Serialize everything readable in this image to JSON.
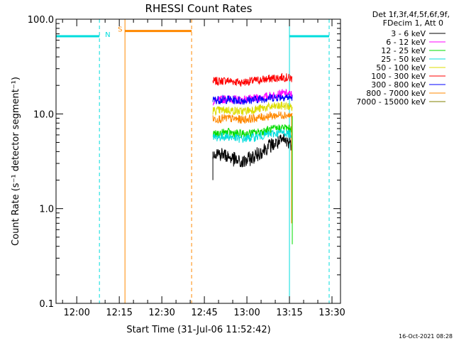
{
  "chart_data": {
    "type": "line",
    "title": "RHESSI Count Rates",
    "xlabel": "Start Time (31-Jul-06 11:52:42)",
    "ylabel": "Count Rate (s⁻¹ detector segment⁻¹)",
    "y_scale": "log",
    "ylim": [
      0.1,
      100.0
    ],
    "xlim": [
      "11:52:42",
      "13:33:00"
    ],
    "x_ticks": [
      "12:00",
      "12:15",
      "12:30",
      "12:45",
      "13:00",
      "13:15",
      "13:30"
    ],
    "y_ticks": [
      "0.1",
      "1.0",
      "10.0",
      "100.0"
    ],
    "grid": false,
    "legend_position": "top-right",
    "legend_header": [
      "Det 1f,3f,4f,5f,6f,9f,",
      "FDecim 1, Att 0"
    ],
    "series": [
      {
        "name": "3 - 6 keV",
        "color": "#000000",
        "x": [
          "12:48",
          "12:53",
          "12:58",
          "13:03",
          "13:08",
          "13:13",
          "13:16"
        ],
        "values": [
          4.0,
          3.6,
          3.0,
          3.6,
          4.6,
          5.2,
          4.9
        ]
      },
      {
        "name": "6 - 12 keV",
        "color": "#ff00ff",
        "x": [
          "12:48",
          "12:53",
          "12:58",
          "13:03",
          "13:08",
          "13:13",
          "13:16"
        ],
        "values": [
          13.5,
          14.5,
          14.0,
          14.5,
          15.5,
          16.5,
          16.0
        ]
      },
      {
        "name": "12 - 25 keV",
        "color": "#00dd00",
        "x": [
          "12:48",
          "12:53",
          "12:58",
          "13:03",
          "13:08",
          "13:13",
          "13:16"
        ],
        "values": [
          6.0,
          6.4,
          6.1,
          6.3,
          6.8,
          7.2,
          6.8
        ]
      },
      {
        "name": "25 - 50 keV",
        "color": "#00dddd",
        "x": [
          "12:48",
          "12:53",
          "12:58",
          "13:03",
          "13:08",
          "13:13",
          "13:16"
        ],
        "values": [
          5.6,
          5.8,
          5.4,
          5.7,
          6.1,
          6.4,
          6.0
        ]
      },
      {
        "name": "50 - 100 keV",
        "color": "#dddd00",
        "x": [
          "12:48",
          "12:53",
          "12:58",
          "13:03",
          "13:08",
          "13:13",
          "13:16"
        ],
        "values": [
          10.8,
          11.0,
          10.6,
          11.2,
          11.8,
          12.2,
          11.8
        ]
      },
      {
        "name": "100 - 300 keV",
        "color": "#ff0000",
        "x": [
          "12:48",
          "12:53",
          "12:58",
          "13:03",
          "13:08",
          "13:13",
          "13:16"
        ],
        "values": [
          22.0,
          22.5,
          21.5,
          22.5,
          23.5,
          24.5,
          23.5
        ]
      },
      {
        "name": "300 - 800 keV",
        "color": "#0000ff",
        "x": [
          "12:48",
          "12:53",
          "12:58",
          "13:03",
          "13:08",
          "13:13",
          "13:16"
        ],
        "values": [
          14.0,
          14.2,
          13.8,
          14.2,
          14.8,
          15.2,
          14.8
        ]
      },
      {
        "name": "800 - 7000 keV",
        "color": "#ff8800",
        "x": [
          "12:48",
          "12:53",
          "12:58",
          "13:03",
          "13:08",
          "13:13",
          "13:16"
        ],
        "values": [
          8.8,
          9.0,
          8.7,
          9.0,
          9.5,
          9.8,
          9.5
        ]
      },
      {
        "name": "7000 - 15000 keV",
        "color": "#808000",
        "x": [],
        "values": []
      }
    ],
    "annotations": [
      {
        "label": "N",
        "color": "#00dddd",
        "start": "11:52:42",
        "end": "12:08:00",
        "level": 66
      },
      {
        "label": "S",
        "color": "#ff8800",
        "start": "12:17:00",
        "end": "12:40:30",
        "level": 75
      },
      {
        "label": "",
        "color": "#00dddd",
        "start": "13:15:00",
        "end": "13:29:00",
        "level": 66
      }
    ],
    "footer_stamp": "16-Oct-2021 08:28"
  }
}
